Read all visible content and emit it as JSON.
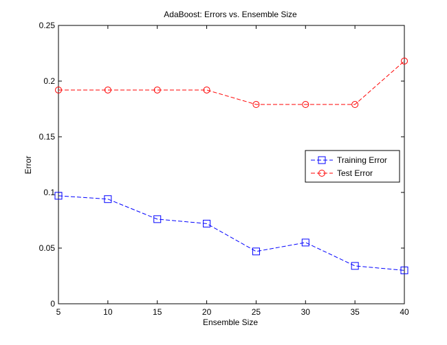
{
  "chart_data": {
    "type": "line",
    "title": "AdaBoost: Errors vs. Ensemble Size",
    "xlabel": "Ensemble Size",
    "ylabel": "Error",
    "x": [
      5,
      10,
      15,
      20,
      25,
      30,
      35,
      40
    ],
    "xlim": [
      5,
      40
    ],
    "ylim": [
      0,
      0.25
    ],
    "xticks": [
      "5",
      "10",
      "15",
      "20",
      "25",
      "30",
      "35",
      "40"
    ],
    "yticks": [
      "0",
      "0.05",
      "0.1",
      "0.15",
      "0.2",
      "0.25"
    ],
    "grid": false,
    "legend_position": "right",
    "series": [
      {
        "name": "Training Error",
        "color": "#0000ff",
        "marker": "square",
        "line_style": "dashed",
        "values": [
          0.097,
          0.094,
          0.076,
          0.072,
          0.047,
          0.055,
          0.034,
          0.03
        ]
      },
      {
        "name": "Test Error",
        "color": "#ff0000",
        "marker": "circle",
        "line_style": "dashed",
        "values": [
          0.192,
          0.192,
          0.192,
          0.192,
          0.179,
          0.179,
          0.179,
          0.218
        ]
      }
    ]
  }
}
